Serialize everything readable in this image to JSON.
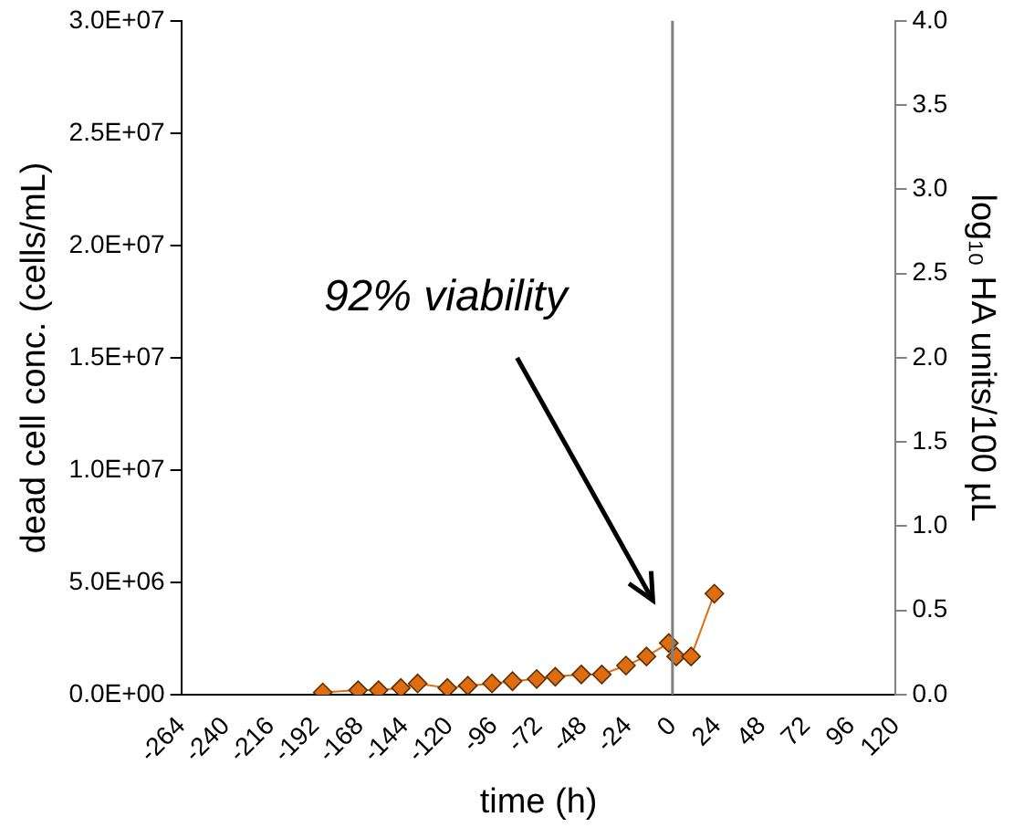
{
  "chart_data": {
    "type": "line",
    "xlabel": "time (h)",
    "ylabel": "dead cell conc. (cells/mL)",
    "y2label": "log₁₀ HA units/100 µL",
    "x": [
      -188,
      -169,
      -158,
      -146,
      -137,
      -121,
      -110,
      -97,
      -86,
      -73,
      -63,
      -49,
      -38,
      -25,
      -14,
      -2,
      2,
      10,
      22.5
    ],
    "series": [
      {
        "color": "#e06c10",
        "values": [
          100000,
          200000,
          200000,
          300000,
          500000,
          300000,
          400000,
          500000,
          600000,
          700000,
          800000,
          900000,
          900000,
          1300000,
          1700000,
          2300000,
          1700000,
          1700000,
          4500000
        ]
      }
    ],
    "marker": "diamond",
    "legend": false,
    "grid": false,
    "xlim": [
      -264,
      120
    ],
    "xticks": [
      -264,
      -240,
      -216,
      -192,
      -168,
      -144,
      -120,
      -96,
      -72,
      -48,
      -24,
      0,
      24,
      48,
      72,
      96,
      120
    ],
    "ylim": [
      0,
      30000000
    ],
    "yticks": [
      {
        "value": 0,
        "label": "0.0E+00"
      },
      {
        "value": 5000000,
        "label": "5.0E+06"
      },
      {
        "value": 10000000,
        "label": "1.0E+07"
      },
      {
        "value": 15000000,
        "label": "1.5E+07"
      },
      {
        "value": 20000000,
        "label": "2.0E+07"
      },
      {
        "value": 25000000,
        "label": "2.5E+07"
      },
      {
        "value": 30000000,
        "label": "3.0E+07"
      }
    ],
    "y2lim": [
      0,
      4
    ],
    "y2ticks": [
      {
        "value": 0,
        "label": "0.0"
      },
      {
        "value": 0.5,
        "label": "0.5"
      },
      {
        "value": 1,
        "label": "1.0"
      },
      {
        "value": 1.5,
        "label": "1.5"
      },
      {
        "value": 2,
        "label": "2.0"
      },
      {
        "value": 2.5,
        "label": "2.5"
      },
      {
        "value": 3,
        "label": "3.0"
      },
      {
        "value": 3.5,
        "label": "3.5"
      },
      {
        "value": 4,
        "label": "4.0"
      }
    ],
    "ref_lines": [
      {
        "axis": "x",
        "value": 0,
        "color": "#808080"
      }
    ],
    "annotations": [
      "92% viability"
    ]
  }
}
